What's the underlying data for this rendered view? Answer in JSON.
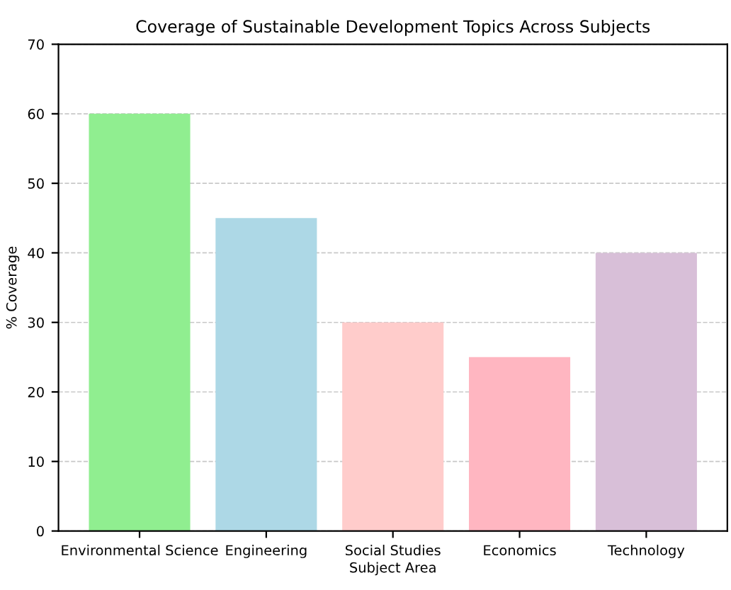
{
  "chart_data": {
    "type": "bar",
    "title": "Coverage of Sustainable Development Topics Across Subjects",
    "xlabel": "Subject Area",
    "ylabel": "% Coverage",
    "categories": [
      "Environmental Science",
      "Engineering",
      "Social Studies",
      "Economics",
      "Technology"
    ],
    "values": [
      60,
      45,
      30,
      25,
      40
    ],
    "colors": [
      "#90ee90",
      "#add8e6",
      "#ffcccb",
      "#ffb6c1",
      "#d8bfd8"
    ],
    "ylim": [
      0,
      70
    ],
    "yticks": [
      0,
      10,
      20,
      30,
      40,
      50,
      60,
      70
    ],
    "grid": "y"
  }
}
